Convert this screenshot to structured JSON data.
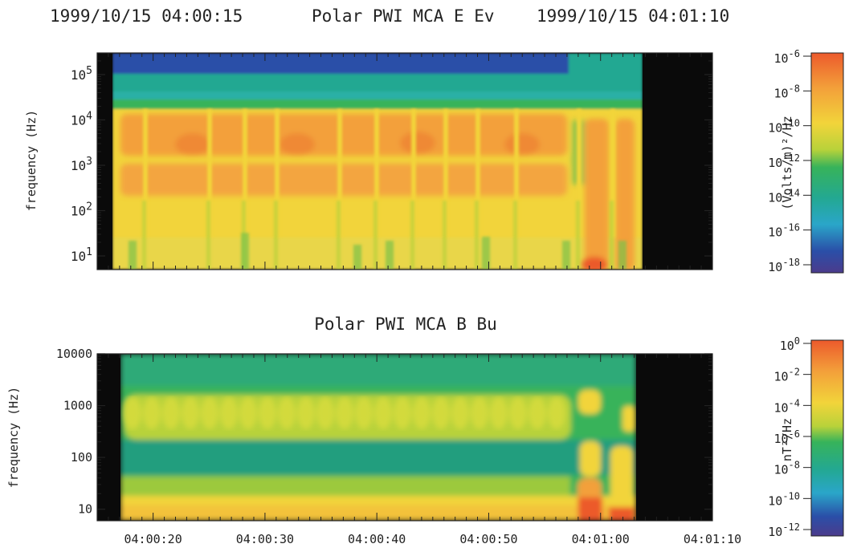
{
  "header": {
    "start_time": "1999/10/15 04:00:15",
    "title": "Polar PWI MCA E Ev",
    "end_time": "1999/10/15 04:01:10"
  },
  "chart_data": [
    {
      "type": "heatmap",
      "title": "Polar PWI MCA E Ev",
      "ylabel": "frequency (Hz)",
      "yscale": "log",
      "ylim": [
        5,
        300000
      ],
      "yticks": [
        {
          "label": "10",
          "exp": "1",
          "value": 10
        },
        {
          "label": "10",
          "exp": "2",
          "value": 100
        },
        {
          "label": "10",
          "exp": "3",
          "value": 1000
        },
        {
          "label": "10",
          "exp": "4",
          "value": 10000
        },
        {
          "label": "10",
          "exp": "5",
          "value": 100000
        }
      ],
      "xlim": [
        "04:00:15",
        "04:01:10"
      ],
      "data_range": [
        "04:00:16.5",
        "04:01:04"
      ],
      "colorbar": {
        "label": "(Volts/m)²/Hz",
        "scale": "log",
        "range": [
          1e-18,
          1e-06
        ],
        "ticks": [
          {
            "label": "10",
            "exp": "-6"
          },
          {
            "label": "10",
            "exp": "-8"
          },
          {
            "label": "10",
            "exp": "-10"
          },
          {
            "label": "10",
            "exp": "-12"
          },
          {
            "label": "10",
            "exp": "-14"
          },
          {
            "label": "10",
            "exp": "-16"
          },
          {
            "label": "10",
            "exp": "-18"
          }
        ]
      }
    },
    {
      "type": "heatmap",
      "title": "Polar PWI MCA B Bu",
      "ylabel": "frequency (Hz)",
      "yscale": "log",
      "ylim": [
        6,
        10000
      ],
      "yticks": [
        {
          "label": "10",
          "value": 10
        },
        {
          "label": "100",
          "value": 100
        },
        {
          "label": "1000",
          "value": 1000
        },
        {
          "label": "10000",
          "value": 10000
        }
      ],
      "xlim": [
        "04:00:15",
        "04:01:10"
      ],
      "data_range": [
        "04:00:17",
        "04:01:03.5"
      ],
      "xticks": [
        "04:00:20",
        "04:00:30",
        "04:00:40",
        "04:00:50",
        "04:01:00",
        "04:01:10"
      ],
      "colorbar": {
        "label": "nT²/Hz",
        "scale": "log",
        "range": [
          1e-12,
          1
        ],
        "ticks": [
          {
            "label": "10",
            "exp": "0"
          },
          {
            "label": "10",
            "exp": "-2"
          },
          {
            "label": "10",
            "exp": "-4"
          },
          {
            "label": "10",
            "exp": "-6"
          },
          {
            "label": "10",
            "exp": "-8"
          },
          {
            "label": "10",
            "exp": "-10"
          },
          {
            "label": "10",
            "exp": "-12"
          }
        ]
      }
    }
  ],
  "colors": {
    "black": "#0a0a0a",
    "blue": "#2a4fa8",
    "teal": "#23a892",
    "green": "#37b35a",
    "yellow_green": "#b8d23a",
    "yellow": "#f2d43a",
    "orange": "#f3a03a",
    "red_orange": "#ec5a2c"
  }
}
